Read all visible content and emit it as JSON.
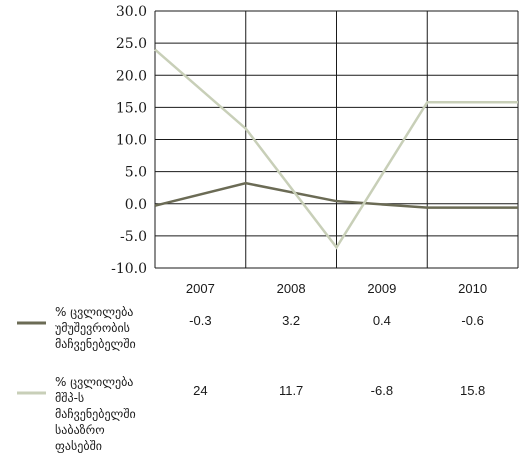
{
  "chart_data": {
    "type": "line",
    "categories": [
      "2007",
      "2008",
      "2009",
      "2010"
    ],
    "ylim": [
      -10,
      30
    ],
    "yticks": [
      "30.0",
      "25.0",
      "20.0",
      "15.0",
      "10.0",
      "5.0",
      "0.0",
      "-5.0",
      "-10.0"
    ],
    "ytick_values": [
      30,
      25,
      20,
      15,
      10,
      5,
      0,
      -5,
      -10
    ],
    "grid": true,
    "legend_position": "bottom-left",
    "series": [
      {
        "name": "% ცვლილება უმუშევრობის მაჩვენებელში",
        "name_lines": [
          "% ცვლილება",
          "უმუშევრობის",
          "მაჩვენებელში"
        ],
        "values": [
          -0.3,
          3.2,
          0.4,
          -0.6
        ],
        "value_labels": [
          "-0.3",
          "3.2",
          "0.4",
          "-0.6"
        ],
        "color": "#6b6b55"
      },
      {
        "name": "% ცვლილება მშპ-ს მაჩვენებელში საბაზრო ფასებში",
        "name_lines": [
          "% ცვლილება",
          "მშპ-ს",
          "მაჩვენებელში",
          "საბაზრო",
          "ფასებში"
        ],
        "values": [
          24,
          11.7,
          -6.8,
          15.8
        ],
        "value_labels": [
          "24",
          "11.7",
          "-6.8",
          "15.8"
        ],
        "color": "#c8cfb8"
      }
    ]
  }
}
